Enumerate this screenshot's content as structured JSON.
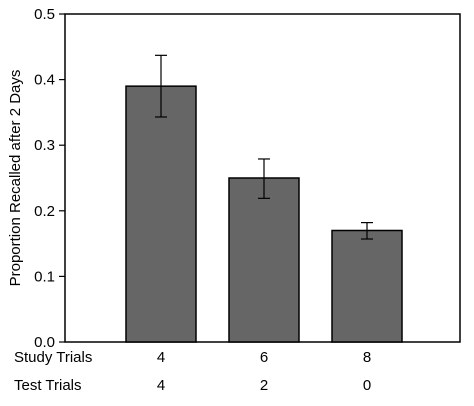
{
  "chart_data": {
    "type": "bar",
    "title": "",
    "xlabel": "",
    "ylabel": "Proportion Recalled after 2 Days",
    "ylim": [
      0.0,
      0.5
    ],
    "yticks": [
      "0.0",
      "0.1",
      "0.2",
      "0.3",
      "0.4",
      "0.5"
    ],
    "grid": false,
    "category_rows": [
      {
        "label": "Study Trials",
        "values": [
          "4",
          "6",
          "8"
        ]
      },
      {
        "label": "Test Trials",
        "values": [
          "4",
          "2",
          "0"
        ]
      }
    ],
    "categories": [
      "Study 4 / Test 4",
      "Study 6 / Test 2",
      "Study 8 / Test 0"
    ],
    "values": [
      0.39,
      0.25,
      0.17
    ],
    "error_bars": [
      {
        "low": 0.343,
        "high": 0.437
      },
      {
        "low": 0.219,
        "high": 0.279
      },
      {
        "low": 0.157,
        "high": 0.182
      }
    ],
    "colors": {
      "bar_fill": "#666666",
      "bar_stroke": "#000000",
      "axis": "#000000",
      "error_bar": "#000000"
    }
  }
}
